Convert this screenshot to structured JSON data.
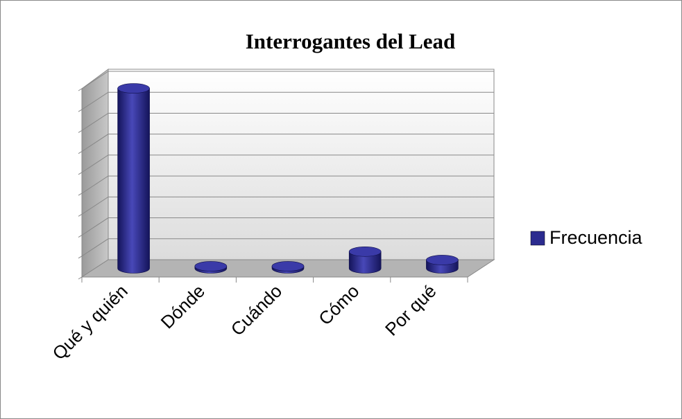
{
  "chart_data": {
    "type": "bar3d",
    "title": "Interrogantes del Lead",
    "categories": [
      "Qué y quién",
      "Dónde",
      "Cuándo",
      "Cómo",
      "Por qué"
    ],
    "series": [
      {
        "name": "Frecuencia",
        "color": "#2b2b8f",
        "values": [
          8.6,
          0.1,
          0.1,
          0.8,
          0.4
        ]
      }
    ],
    "ylim": [
      0,
      9
    ],
    "yticks": [
      0,
      1,
      2,
      3,
      4,
      5,
      6,
      7,
      8,
      9
    ],
    "grid": true,
    "legend": "right"
  }
}
